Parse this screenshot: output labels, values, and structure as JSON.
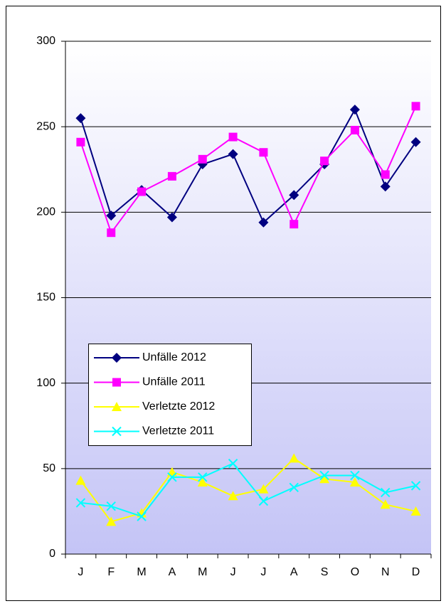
{
  "chart_data": {
    "type": "line",
    "categories": [
      "J",
      "F",
      "M",
      "A",
      "M",
      "J",
      "J",
      "A",
      "S",
      "O",
      "N",
      "D"
    ],
    "series": [
      {
        "name": "Unfälle 2012",
        "color": "#000080",
        "marker": "diamond",
        "values": [
          255,
          198,
          213,
          197,
          228,
          234,
          194,
          210,
          228,
          260,
          215,
          241
        ]
      },
      {
        "name": "Unfälle 2011",
        "color": "#ff00ff",
        "marker": "square",
        "values": [
          241,
          188,
          212,
          221,
          231,
          244,
          235,
          193,
          230,
          248,
          222,
          262
        ]
      },
      {
        "name": "Verletzte 2012",
        "color": "#ffff00",
        "marker": "triangle",
        "values": [
          43,
          19,
          24,
          48,
          42,
          34,
          38,
          56,
          44,
          42,
          29,
          25
        ]
      },
      {
        "name": "Verletzte 2011",
        "color": "#00ffff",
        "marker": "x",
        "values": [
          30,
          28,
          22,
          45,
          45,
          53,
          31,
          39,
          46,
          46,
          36,
          40
        ]
      }
    ],
    "ylim": [
      0,
      300
    ],
    "yticks": [
      0,
      50,
      100,
      150,
      200,
      250,
      300
    ],
    "grid": true,
    "legend": "center-left"
  }
}
